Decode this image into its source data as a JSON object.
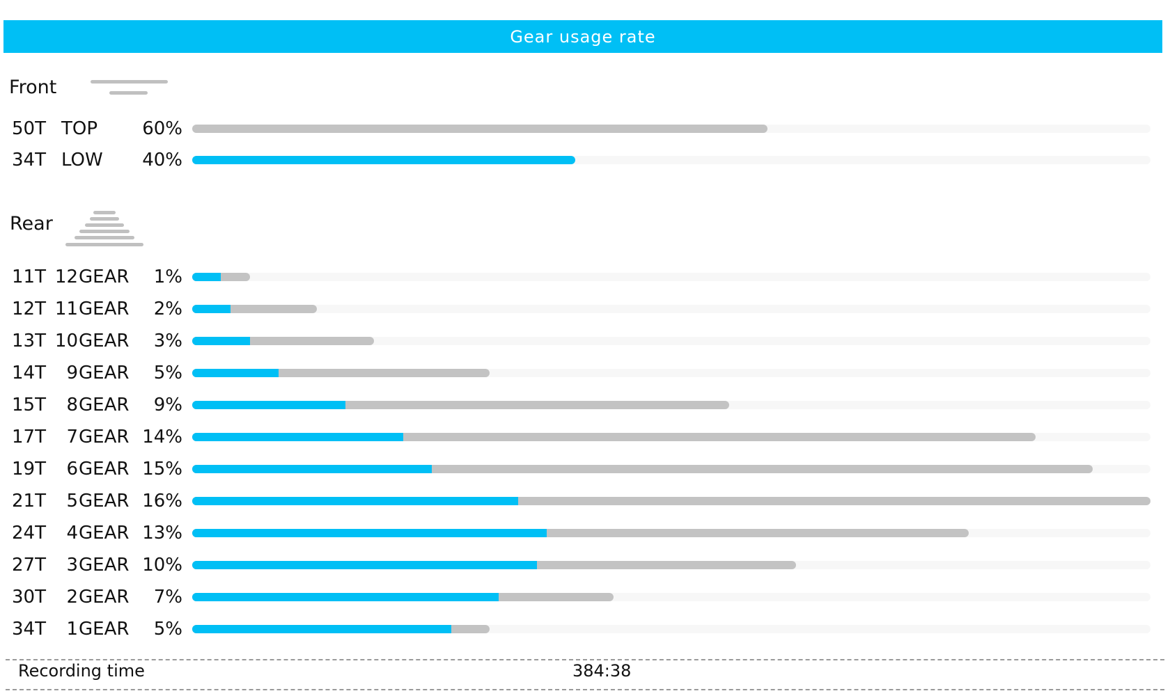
{
  "header": {
    "title": "Gear usage rate"
  },
  "front": {
    "title": "Front",
    "icon": "front-chainring-icon",
    "rows": [
      {
        "cog": "50T",
        "name": "TOP",
        "percent": "60%",
        "value": 60,
        "bar_fraction": 0.6
      },
      {
        "cog": "34T",
        "name": "LOW",
        "percent": "40%",
        "value": 40,
        "bar_fraction": 0.4
      }
    ]
  },
  "rear": {
    "title": "Rear",
    "icon": "rear-cassette-icon",
    "rows": [
      {
        "cog": "11T",
        "gear_num": "12",
        "gear_word": "GEAR",
        "percent": "1%",
        "value": 1,
        "bar_fraction": 0.06,
        "fill_fraction": 0.03
      },
      {
        "cog": "12T",
        "gear_num": "11",
        "gear_word": "GEAR",
        "percent": "2%",
        "value": 2,
        "bar_fraction": 0.13,
        "fill_fraction": 0.04
      },
      {
        "cog": "13T",
        "gear_num": "10",
        "gear_word": "GEAR",
        "percent": "3%",
        "value": 3,
        "bar_fraction": 0.19,
        "fill_fraction": 0.06
      },
      {
        "cog": "14T",
        "gear_num": "9",
        "gear_word": "GEAR",
        "percent": "5%",
        "value": 5,
        "bar_fraction": 0.31,
        "fill_fraction": 0.09
      },
      {
        "cog": "15T",
        "gear_num": "8",
        "gear_word": "GEAR",
        "percent": "9%",
        "value": 9,
        "bar_fraction": 0.56,
        "fill_fraction": 0.16
      },
      {
        "cog": "17T",
        "gear_num": "7",
        "gear_word": "GEAR",
        "percent": "14%",
        "value": 14,
        "bar_fraction": 0.88,
        "fill_fraction": 0.22
      },
      {
        "cog": "19T",
        "gear_num": "6",
        "gear_word": "GEAR",
        "percent": "15%",
        "value": 15,
        "bar_fraction": 0.94,
        "fill_fraction": 0.25
      },
      {
        "cog": "21T",
        "gear_num": "5",
        "gear_word": "GEAR",
        "percent": "16%",
        "value": 16,
        "bar_fraction": 1.0,
        "fill_fraction": 0.34
      },
      {
        "cog": "24T",
        "gear_num": "4",
        "gear_word": "GEAR",
        "percent": "13%",
        "value": 13,
        "bar_fraction": 0.81,
        "fill_fraction": 0.37
      },
      {
        "cog": "27T",
        "gear_num": "3",
        "gear_word": "GEAR",
        "percent": "10%",
        "value": 10,
        "bar_fraction": 0.63,
        "fill_fraction": 0.36
      },
      {
        "cog": "30T",
        "gear_num": "2",
        "gear_word": "GEAR",
        "percent": "7%",
        "value": 7,
        "bar_fraction": 0.44,
        "fill_fraction": 0.32
      },
      {
        "cog": "34T",
        "gear_num": "1",
        "gear_word": "GEAR",
        "percent": "5%",
        "value": 5,
        "bar_fraction": 0.31,
        "fill_fraction": 0.27
      }
    ]
  },
  "footer": {
    "label": "Recording time",
    "value": "384:38"
  },
  "colors": {
    "accent": "#00bff5",
    "bar_gray": "#c3c3c3",
    "track": "#f7f7f7",
    "text": "#111111"
  }
}
